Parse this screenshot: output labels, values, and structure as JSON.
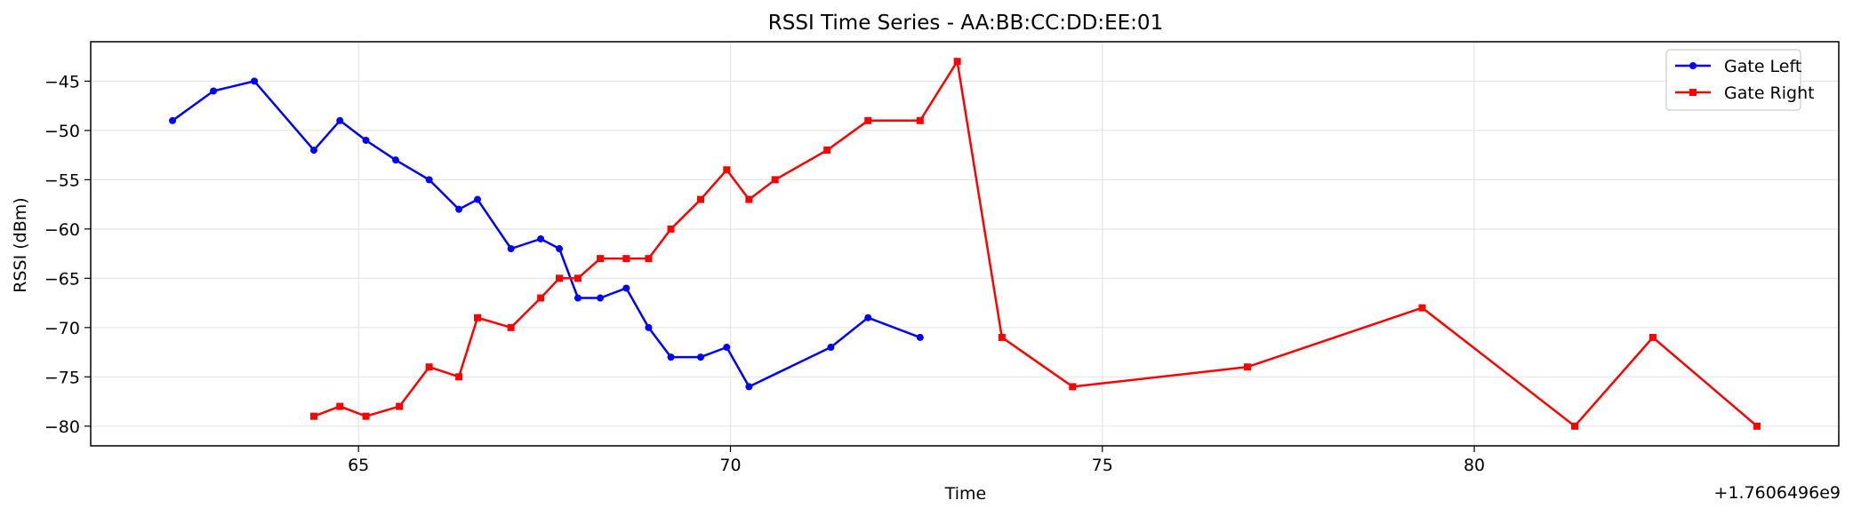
{
  "chart_data": {
    "type": "line",
    "title": "RSSI Time Series - AA:BB:CC:DD:EE:01",
    "xlabel": "Time",
    "ylabel": "RSSI (dBm)",
    "x_offset_label": "+1.7606496e9",
    "xlim": [
      61.4,
      84.9
    ],
    "ylim": [
      -82,
      -41
    ],
    "xticks": [
      65,
      70,
      75,
      80
    ],
    "yticks": [
      -45,
      -50,
      -55,
      -60,
      -65,
      -70,
      -75,
      -80
    ],
    "grid": true,
    "legend_placement": "top-right",
    "series": [
      {
        "name": "Gate Left",
        "color": "#0000ff",
        "marker": "circle",
        "x": [
          62.5,
          63.05,
          63.6,
          64.4,
          64.75,
          65.1,
          65.5,
          65.95,
          66.35,
          66.6,
          67.05,
          67.45,
          67.7,
          67.95,
          68.25,
          68.6,
          68.9,
          69.2,
          69.6,
          69.95,
          70.25,
          71.35,
          71.85,
          72.55
        ],
        "values": [
          -49,
          -46,
          -45,
          -52,
          -49,
          -51,
          -53,
          -55,
          -58,
          -57,
          -62,
          -61,
          -62,
          -67,
          -67,
          -66,
          -70,
          -73,
          -73,
          -72,
          -76,
          -72,
          -69,
          -71
        ]
      },
      {
        "name": "Gate Right",
        "color": "#ff0000",
        "marker": "square",
        "x": [
          64.4,
          64.75,
          65.1,
          65.55,
          65.95,
          66.35,
          66.6,
          67.05,
          67.45,
          67.7,
          67.95,
          68.25,
          68.6,
          68.9,
          69.2,
          69.6,
          69.95,
          70.25,
          70.6,
          71.3,
          71.85,
          72.55,
          73.05,
          73.65,
          74.6,
          76.95,
          79.3,
          81.35,
          82.4,
          83.8
        ],
        "values": [
          -79,
          -78,
          -79,
          -78,
          -74,
          -75,
          -69,
          -70,
          -67,
          -65,
          -65,
          -63,
          -63,
          -63,
          -60,
          -57,
          -54,
          -57,
          -55,
          -52,
          -49,
          -49,
          -43,
          -71,
          -76,
          -74,
          -68,
          -80,
          -71,
          -80
        ]
      }
    ]
  }
}
